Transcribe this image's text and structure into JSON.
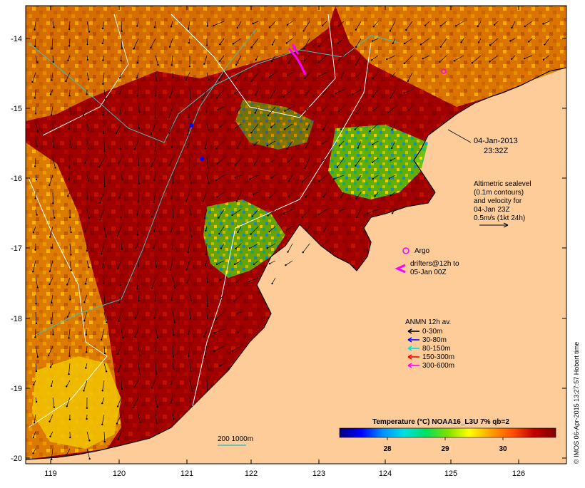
{
  "map": {
    "land_color": "#fdcc99",
    "lat_labels": [
      "-14",
      "-15",
      "-16",
      "-17",
      "-18",
      "-19",
      "-20"
    ],
    "lon_labels": [
      "119",
      "120",
      "121",
      "122",
      "123",
      "124",
      "125",
      "126"
    ]
  },
  "annotations": {
    "date": "04-Jan-2013",
    "time": "23:32Z",
    "altimetry": [
      "Altimetric sealevel",
      "(0.1m contours)",
      "and velocity for",
      "04-Jan 23Z",
      "0.5m/s (1kt 24h)"
    ],
    "argo_label": "Argo",
    "drifters": [
      "drifters@12h to",
      "05-Jan 00Z"
    ]
  },
  "legend": {
    "title": "ANMN 12h av.",
    "items": [
      {
        "label": "0-30m",
        "color": "#000000"
      },
      {
        "label": "30-80m",
        "color": "#0000ff"
      },
      {
        "label": "80-150m",
        "color": "#00e0e0"
      },
      {
        "label": "150-300m",
        "color": "#ff0000"
      },
      {
        "label": "300-600m",
        "color": "#ff00ff"
      }
    ]
  },
  "colorbar": {
    "title": "Temperature (°C) NOAA16_L3U 7% qb=2",
    "ticks": [
      "28",
      "29",
      "30"
    ],
    "stops": [
      "#000080",
      "#0000ff",
      "#0090ff",
      "#00e0e0",
      "#00e060",
      "#80e000",
      "#ffff00",
      "#ffa000",
      "#ff5000",
      "#c00000",
      "#800000"
    ]
  },
  "isobath_label": "200  1000m",
  "credit": "© IMOS 06-Apr-2015 13:27:57 Hobart time"
}
